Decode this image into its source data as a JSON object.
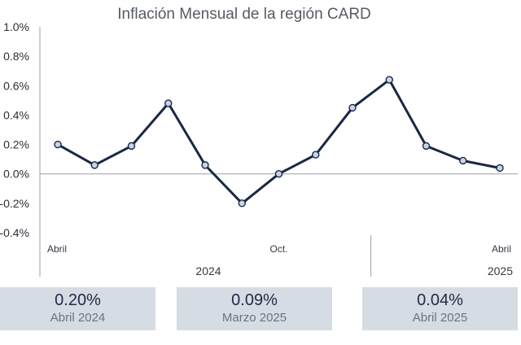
{
  "chart_data": {
    "type": "line",
    "title": "Inflación Mensual de la región CARD",
    "x": [
      "2024-04",
      "2024-05",
      "2024-06",
      "2024-07",
      "2024-08",
      "2024-09",
      "2024-10",
      "2024-11",
      "2024-12",
      "2025-01",
      "2025-02",
      "2025-03",
      "2025-04"
    ],
    "series": [
      {
        "values": [
          0.2,
          0.06,
          0.19,
          0.48,
          0.06,
          -0.2,
          0.0,
          0.13,
          0.45,
          0.64,
          0.19,
          0.09,
          0.04
        ]
      }
    ],
    "yticks": [
      "1.0%",
      "0.8%",
      "0.6%",
      "0.4%",
      "0.2%",
      "0.0%",
      "-0.2%",
      "-0.4%"
    ],
    "ylim": [
      -0.4,
      1.0
    ],
    "month_labels": [
      {
        "index": 0,
        "text": "Abril"
      },
      {
        "index": 6,
        "text": "Oct."
      },
      {
        "index": 12,
        "text": "Abril"
      }
    ],
    "year_labels": [
      {
        "text": "2024",
        "from": 0,
        "to": 8
      },
      {
        "text": "2025",
        "from": 9,
        "to": 12
      }
    ],
    "grid": false,
    "line_color": "#1a2744",
    "marker_fill": "#c9d4e8"
  },
  "kpis": [
    {
      "value": "0.20%",
      "label": "Abril 2024"
    },
    {
      "value": "0.09%",
      "label": "Marzo 2025"
    },
    {
      "value": "0.04%",
      "label": "Abril 2025"
    }
  ]
}
